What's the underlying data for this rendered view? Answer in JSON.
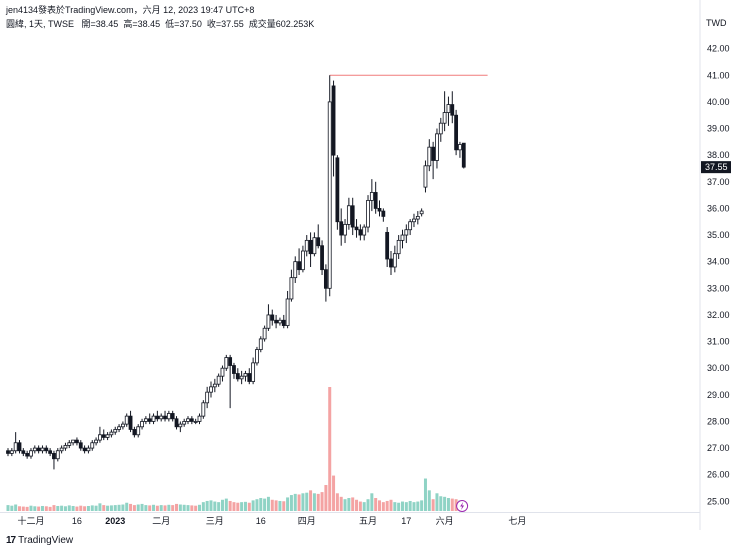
{
  "header": {
    "publisher": "jen4134發表於TradingView.com，六月 12, 2023 19:47 UTC+8"
  },
  "legend": {
    "symbol": "圓緯, 1天, TWSE",
    "open": "開=38.45",
    "high": "高=38.45",
    "low": "低=37.50",
    "close": "收=37.55",
    "volume": "成交量602.253K"
  },
  "currency": "TWD",
  "brand": {
    "name": "TradingView",
    "logo_text": "17"
  },
  "colors": {
    "up_body": "#ffffff",
    "down_body": "#131722",
    "candle_outline": "#131722",
    "vol_up": "#8fd3c5",
    "vol_down": "#f4a3a3",
    "hline": "#f07b7b",
    "price_tag_bg": "#131722"
  },
  "chart_data": {
    "type": "candlestick",
    "price_axis": {
      "ylim": [
        24.6,
        42.7
      ],
      "ticks": [
        "42.00",
        "41.00",
        "40.00",
        "39.00",
        "38.00",
        "37.00",
        "36.00",
        "35.00",
        "34.00",
        "33.00",
        "32.00",
        "31.00",
        "30.00",
        "29.00",
        "28.00",
        "27.00",
        "26.00",
        "25.00"
      ],
      "last_price_label": "37.55",
      "last_price": 37.55
    },
    "x_axis": {
      "labels": [
        "十二月",
        "16",
        "2023",
        "二月",
        "三月",
        "16",
        "四月",
        "五月",
        "17",
        "六月",
        "七月"
      ],
      "label_bar_index": [
        6,
        18,
        28,
        40,
        54,
        66,
        78,
        94,
        104,
        114,
        133
      ]
    },
    "horizontal_line": 41.0,
    "candles": [
      [
        26.9,
        27.0,
        26.7,
        26.8
      ],
      [
        26.8,
        27.0,
        26.7,
        26.9
      ],
      [
        26.9,
        27.6,
        26.8,
        27.2
      ],
      [
        27.2,
        27.3,
        26.8,
        26.9
      ],
      [
        26.9,
        27.0,
        26.7,
        26.8
      ],
      [
        26.8,
        26.9,
        26.6,
        26.7
      ],
      [
        26.7,
        27.0,
        26.6,
        26.9
      ],
      [
        26.9,
        27.1,
        26.8,
        27.0
      ],
      [
        27.0,
        27.1,
        26.8,
        26.9
      ],
      [
        26.9,
        27.1,
        26.8,
        27.0
      ],
      [
        27.0,
        27.1,
        26.8,
        26.9
      ],
      [
        26.9,
        27.0,
        26.7,
        26.8
      ],
      [
        26.8,
        26.9,
        26.2,
        26.6
      ],
      [
        26.6,
        27.0,
        26.5,
        26.9
      ],
      [
        26.9,
        27.1,
        26.8,
        27.0
      ],
      [
        27.0,
        27.2,
        26.9,
        27.1
      ],
      [
        27.1,
        27.3,
        27.0,
        27.2
      ],
      [
        27.2,
        27.3,
        27.1,
        27.3
      ],
      [
        27.3,
        27.4,
        27.1,
        27.2
      ],
      [
        27.2,
        27.3,
        26.9,
        27.0
      ],
      [
        27.0,
        27.1,
        26.8,
        26.9
      ],
      [
        26.9,
        27.1,
        26.8,
        27.0
      ],
      [
        27.0,
        27.3,
        26.9,
        27.2
      ],
      [
        27.2,
        27.4,
        27.1,
        27.3
      ],
      [
        27.3,
        27.8,
        27.2,
        27.5
      ],
      [
        27.5,
        27.7,
        27.3,
        27.4
      ],
      [
        27.4,
        27.6,
        27.3,
        27.5
      ],
      [
        27.5,
        27.7,
        27.4,
        27.6
      ],
      [
        27.6,
        27.8,
        27.5,
        27.7
      ],
      [
        27.7,
        27.9,
        27.6,
        27.8
      ],
      [
        27.8,
        28.0,
        27.7,
        27.9
      ],
      [
        27.9,
        28.3,
        27.8,
        28.2
      ],
      [
        28.2,
        28.4,
        27.6,
        27.7
      ],
      [
        27.7,
        27.8,
        27.4,
        27.5
      ],
      [
        27.5,
        27.9,
        27.4,
        27.8
      ],
      [
        27.8,
        28.1,
        27.7,
        28.0
      ],
      [
        28.0,
        28.2,
        27.9,
        28.1
      ],
      [
        28.1,
        28.3,
        27.9,
        28.0
      ],
      [
        28.0,
        28.3,
        27.9,
        28.2
      ],
      [
        28.2,
        28.4,
        28.0,
        28.1
      ],
      [
        28.1,
        28.3,
        28.0,
        28.2
      ],
      [
        28.2,
        28.4,
        28.0,
        28.1
      ],
      [
        28.1,
        28.4,
        28.0,
        28.3
      ],
      [
        28.3,
        28.4,
        28.0,
        28.1
      ],
      [
        28.1,
        28.2,
        27.7,
        27.8
      ],
      [
        27.8,
        28.0,
        27.6,
        27.9
      ],
      [
        27.9,
        28.1,
        27.8,
        28.0
      ],
      [
        28.0,
        28.2,
        27.9,
        28.1
      ],
      [
        28.1,
        28.2,
        27.9,
        28.0
      ],
      [
        28.0,
        28.1,
        27.9,
        28.0
      ],
      [
        28.0,
        28.3,
        27.9,
        28.2
      ],
      [
        28.2,
        28.8,
        28.1,
        28.7
      ],
      [
        28.7,
        29.3,
        28.5,
        29.1
      ],
      [
        29.1,
        29.5,
        28.9,
        29.3
      ],
      [
        29.3,
        29.6,
        29.1,
        29.4
      ],
      [
        29.4,
        29.8,
        29.3,
        29.7
      ],
      [
        29.7,
        30.1,
        29.5,
        30.0
      ],
      [
        30.0,
        30.5,
        29.9,
        30.4
      ],
      [
        30.4,
        30.5,
        28.5,
        30.1
      ],
      [
        30.1,
        30.2,
        29.6,
        29.8
      ],
      [
        29.8,
        30.0,
        29.5,
        29.6
      ],
      [
        29.6,
        29.9,
        29.4,
        29.7
      ],
      [
        29.7,
        29.9,
        29.5,
        29.8
      ],
      [
        29.8,
        30.0,
        29.4,
        29.5
      ],
      [
        29.5,
        30.4,
        29.4,
        30.2
      ],
      [
        30.2,
        30.8,
        30.1,
        30.7
      ],
      [
        30.7,
        31.2,
        30.6,
        31.1
      ],
      [
        31.1,
        31.6,
        31.0,
        31.5
      ],
      [
        31.5,
        32.4,
        31.4,
        32.0
      ],
      [
        32.0,
        32.2,
        31.6,
        31.8
      ],
      [
        31.8,
        32.0,
        31.5,
        31.7
      ],
      [
        31.7,
        31.9,
        31.6,
        31.8
      ],
      [
        31.8,
        32.0,
        31.5,
        31.6
      ],
      [
        31.6,
        32.9,
        31.5,
        32.6
      ],
      [
        32.6,
        33.7,
        32.5,
        33.4
      ],
      [
        33.4,
        34.2,
        33.2,
        34.0
      ],
      [
        34.0,
        34.5,
        33.5,
        33.7
      ],
      [
        33.7,
        34.6,
        33.6,
        34.4
      ],
      [
        34.4,
        35.0,
        34.2,
        34.8
      ],
      [
        34.8,
        35.1,
        33.8,
        34.3
      ],
      [
        34.3,
        35.1,
        34.2,
        34.9
      ],
      [
        34.9,
        35.4,
        34.5,
        34.6
      ],
      [
        34.6,
        34.8,
        33.5,
        33.7
      ],
      [
        33.7,
        33.9,
        32.5,
        33.0
      ],
      [
        33.0,
        41.0,
        32.7,
        40.0
      ],
      [
        40.6,
        40.8,
        37.2,
        38.0
      ],
      [
        37.9,
        38.0,
        35.2,
        35.5
      ],
      [
        35.5,
        36.0,
        34.6,
        35.0
      ],
      [
        35.0,
        35.6,
        34.7,
        35.4
      ],
      [
        35.4,
        36.4,
        35.2,
        36.1
      ],
      [
        36.1,
        36.4,
        35.0,
        35.3
      ],
      [
        35.3,
        35.6,
        34.9,
        35.2
      ],
      [
        35.2,
        35.4,
        34.8,
        35.0
      ],
      [
        35.0,
        35.4,
        34.8,
        35.3
      ],
      [
        35.3,
        36.5,
        35.1,
        36.3
      ],
      [
        36.3,
        37.1,
        35.9,
        36.6
      ],
      [
        36.6,
        37.0,
        35.8,
        36.0
      ],
      [
        36.0,
        36.3,
        35.7,
        35.9
      ],
      [
        35.9,
        36.0,
        35.5,
        35.7
      ],
      [
        35.1,
        35.3,
        33.8,
        34.1
      ],
      [
        34.1,
        34.4,
        33.5,
        33.8
      ],
      [
        33.8,
        34.6,
        33.6,
        34.3
      ],
      [
        34.3,
        35.0,
        34.1,
        34.8
      ],
      [
        34.8,
        35.2,
        34.5,
        35.0
      ],
      [
        35.0,
        35.4,
        34.7,
        35.2
      ],
      [
        35.2,
        35.6,
        35.0,
        35.5
      ],
      [
        35.5,
        35.8,
        35.3,
        35.6
      ],
      [
        35.6,
        35.9,
        35.4,
        35.7
      ],
      [
        35.8,
        36.0,
        35.7,
        35.9
      ],
      [
        36.8,
        37.8,
        36.6,
        37.6
      ],
      [
        37.6,
        38.6,
        37.4,
        38.3
      ],
      [
        38.3,
        38.5,
        37.1,
        37.8
      ],
      [
        37.8,
        39.0,
        37.5,
        38.8
      ],
      [
        38.8,
        39.4,
        38.5,
        39.2
      ],
      [
        39.2,
        40.4,
        38.9,
        39.6
      ],
      [
        39.6,
        40.2,
        39.1,
        39.9
      ],
      [
        39.9,
        40.4,
        39.2,
        39.5
      ],
      [
        39.5,
        39.7,
        38.0,
        38.2
      ],
      [
        38.2,
        38.5,
        37.9,
        38.4
      ],
      [
        38.45,
        38.45,
        37.5,
        37.55
      ]
    ],
    "volume": [
      20,
      18,
      22,
      16,
      15,
      14,
      18,
      16,
      15,
      17,
      16,
      14,
      20,
      17,
      18,
      16,
      19,
      17,
      15,
      18,
      16,
      17,
      19,
      18,
      26,
      20,
      18,
      19,
      20,
      21,
      22,
      28,
      24,
      20,
      22,
      24,
      20,
      19,
      21,
      18,
      20,
      19,
      21,
      20,
      24,
      22,
      21,
      20,
      19,
      18,
      21,
      30,
      34,
      36,
      32,
      30,
      38,
      42,
      34,
      30,
      28,
      30,
      31,
      28,
      36,
      40,
      44,
      42,
      48,
      38,
      36,
      34,
      33,
      46,
      54,
      58,
      56,
      60,
      62,
      70,
      60,
      58,
      64,
      88,
      420,
      120,
      60,
      48,
      40,
      44,
      46,
      38,
      32,
      30,
      40,
      60,
      44,
      36,
      30,
      34,
      38,
      30,
      28,
      32,
      30,
      34,
      30,
      32,
      36,
      110,
      70,
      40,
      60,
      50,
      48,
      44,
      42,
      40,
      36,
      20
    ],
    "volume_direction": [
      "u",
      "u",
      "u",
      "d",
      "d",
      "d",
      "u",
      "u",
      "d",
      "u",
      "d",
      "d",
      "d",
      "u",
      "u",
      "u",
      "u",
      "u",
      "d",
      "d",
      "d",
      "u",
      "u",
      "u",
      "u",
      "d",
      "u",
      "u",
      "u",
      "u",
      "u",
      "u",
      "d",
      "d",
      "u",
      "u",
      "u",
      "d",
      "u",
      "d",
      "u",
      "d",
      "u",
      "d",
      "d",
      "u",
      "u",
      "u",
      "d",
      "d",
      "u",
      "u",
      "u",
      "u",
      "u",
      "u",
      "u",
      "u",
      "d",
      "d",
      "d",
      "u",
      "u",
      "d",
      "u",
      "u",
      "u",
      "u",
      "u",
      "d",
      "d",
      "u",
      "d",
      "u",
      "u",
      "u",
      "d",
      "u",
      "u",
      "d",
      "u",
      "d",
      "d",
      "d",
      "d",
      "d",
      "d",
      "d",
      "u",
      "u",
      "d",
      "d",
      "d",
      "u",
      "u",
      "u",
      "d",
      "d",
      "d",
      "d",
      "d",
      "u",
      "u",
      "u",
      "u",
      "u",
      "u",
      "u",
      "u",
      "u",
      "u",
      "d",
      "u",
      "u",
      "u",
      "u",
      "d",
      "d",
      "u",
      "d"
    ]
  }
}
